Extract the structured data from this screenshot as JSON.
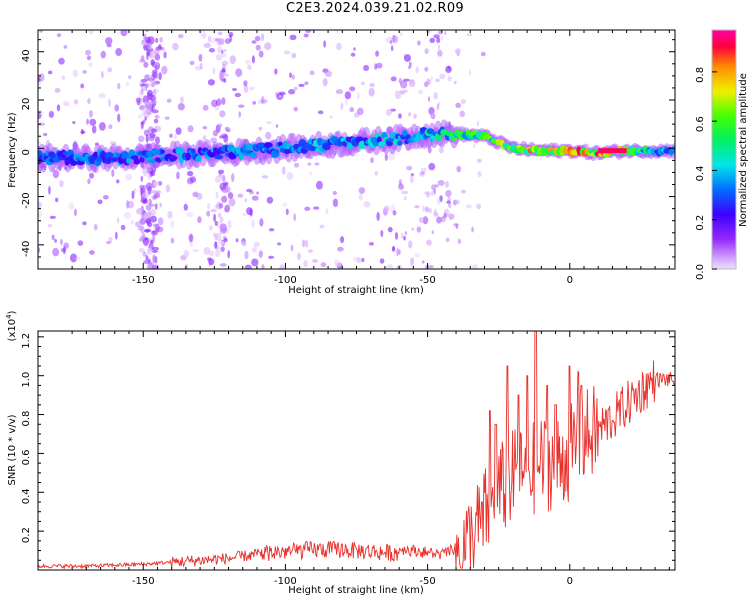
{
  "figure": {
    "title": "C2E3.2024.039.21.02.R09"
  },
  "chart_data": [
    {
      "type": "heatmap",
      "xlabel": "Height of straight line (km)",
      "ylabel": "Frequency (Hz)",
      "xlim": [
        -187,
        37
      ],
      "ylim": [
        -50,
        49
      ],
      "xticks": [
        -150,
        -100,
        -50,
        0
      ],
      "yticks": [
        -40,
        -20,
        0,
        20,
        40
      ],
      "ridge": {
        "x": [
          -187,
          -160,
          -140,
          -120,
          -100,
          -80,
          -60,
          -50,
          -40,
          -30,
          -20,
          -10,
          0,
          10,
          20,
          30,
          37
        ],
        "y": [
          -4,
          -4,
          -3,
          -2,
          0,
          2,
          4,
          6,
          6,
          5,
          0,
          -1,
          -1,
          -2,
          -1,
          -1,
          -1
        ]
      },
      "peak_amplitude": {
        "x": [
          -187,
          -150,
          -100,
          -60,
          -50,
          -40,
          -30,
          -20,
          -10,
          0,
          10,
          20,
          37
        ],
        "v": [
          0.38,
          0.4,
          0.42,
          0.48,
          0.5,
          0.62,
          0.7,
          0.78,
          0.88,
          0.9,
          0.95,
          0.7,
          0.4
        ]
      },
      "colorbar": {
        "label": "Normalized spectral amplitude",
        "range": [
          0.0,
          0.97
        ],
        "ticks": [
          0.0,
          0.2,
          0.4,
          0.6,
          0.8
        ]
      }
    },
    {
      "type": "line",
      "xlabel": "Height of straight line (km)",
      "ylabel": "SNR (10 * v/v)",
      "y_multiplier": "(x10",
      "y_multiplier_exp": "4",
      "y_multiplier_close": ")",
      "xlim": [
        -187,
        37
      ],
      "ylim": [
        0,
        1.23
      ],
      "xticks": [
        -150,
        -100,
        -50,
        0
      ],
      "yticks": [
        0.2,
        0.4,
        0.6,
        0.8,
        1.0,
        1.2
      ],
      "color": "#e8302c",
      "series": [
        {
          "name": "SNR",
          "x": [
            -187,
            -170,
            -150,
            -140,
            -130,
            -120,
            -110,
            -100,
            -90,
            -80,
            -70,
            -60,
            -50,
            -45,
            -40,
            -35,
            -30,
            -25,
            -20,
            -15,
            -10,
            -5,
            0,
            5,
            10,
            15,
            20,
            25,
            30,
            37
          ],
          "y": [
            0.02,
            0.02,
            0.03,
            0.04,
            0.05,
            0.06,
            0.08,
            0.09,
            0.1,
            0.1,
            0.09,
            0.08,
            0.06,
            0.05,
            0.08,
            0.15,
            0.28,
            0.4,
            0.48,
            0.5,
            0.55,
            0.55,
            0.6,
            0.68,
            0.72,
            0.78,
            0.85,
            0.92,
            0.98,
            0.98
          ]
        }
      ],
      "spikes": [
        {
          "x": -31,
          "y": 0.35
        },
        {
          "x": -28,
          "y": 0.82
        },
        {
          "x": -26,
          "y": 0.75
        },
        {
          "x": -22,
          "y": 1.05
        },
        {
          "x": -18,
          "y": 0.9
        },
        {
          "x": -15,
          "y": 1.0
        },
        {
          "x": -12,
          "y": 1.23
        },
        {
          "x": -8,
          "y": 0.95
        },
        {
          "x": -5,
          "y": 0.85
        },
        {
          "x": 0,
          "y": 1.05
        },
        {
          "x": 3,
          "y": 1.02
        },
        {
          "x": 4,
          "y": 0.95
        }
      ]
    }
  ]
}
